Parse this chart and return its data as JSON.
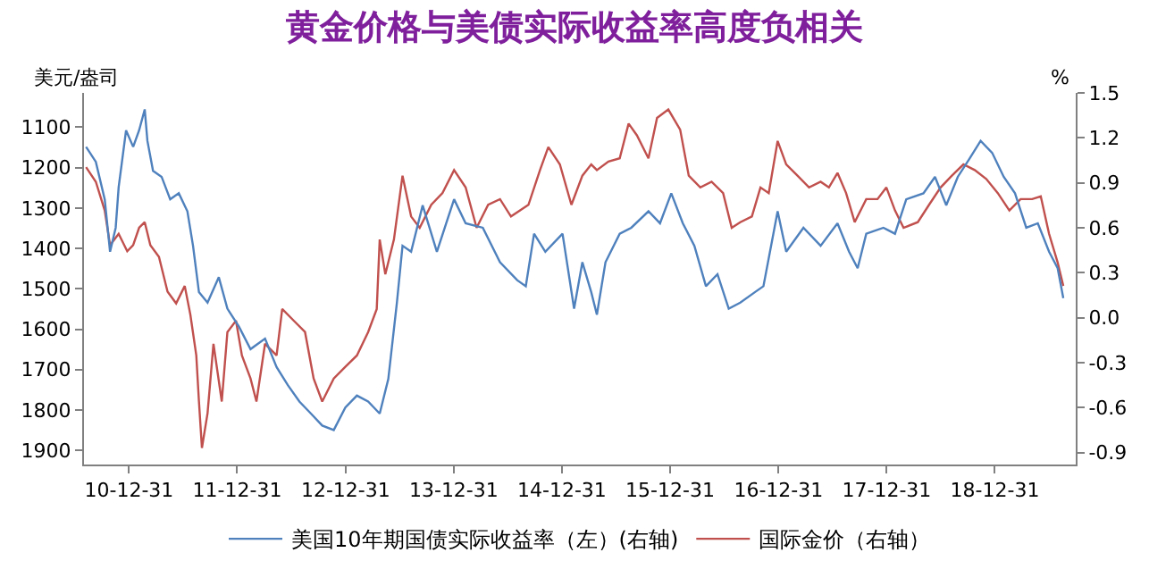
{
  "chart_data": {
    "type": "line",
    "title": "黄金价格与美债实际收益率高度负相关",
    "ylabel": "美元/盎司",
    "y2label": "%",
    "xlim": [
      "2010-08-01",
      "2019-09-30"
    ],
    "xticks": [
      {
        "value": "2010-12-31",
        "label": "10-12-31"
      },
      {
        "value": "2011-12-31",
        "label": "11-12-31"
      },
      {
        "value": "2012-12-31",
        "label": "12-12-31"
      },
      {
        "value": "2013-12-31",
        "label": "13-12-31"
      },
      {
        "value": "2014-12-31",
        "label": "14-12-31"
      },
      {
        "value": "2015-12-31",
        "label": "15-12-31"
      },
      {
        "value": "2016-12-31",
        "label": "16-12-31"
      },
      {
        "value": "2017-12-31",
        "label": "17-12-31"
      },
      {
        "value": "2018-12-31",
        "label": "18-12-31"
      }
    ],
    "ylim": [
      1935,
      1015
    ],
    "yticks": [
      1100,
      1200,
      1300,
      1400,
      1500,
      1600,
      1700,
      1800,
      1900
    ],
    "y2lim": [
      -0.98,
      1.5
    ],
    "y2ticks": [
      -0.9,
      -0.6,
      -0.3,
      {
        "value": 0,
        "label": "0.0"
      },
      0.3,
      0.6,
      0.9,
      1.2,
      1.5
    ],
    "legend": "bottom",
    "marker": "none",
    "line_style": "solid",
    "series": [
      {
        "name": "美国10年期国债实际收益率（左）(右轴)",
        "color": "#4f81bd",
        "axis": "y2",
        "x": [
          "2010-08-08",
          "2010-09-10",
          "2010-10-10",
          "2010-10-28",
          "2010-11-16",
          "2010-11-26",
          "2010-12-21",
          "2011-01-14",
          "2011-02-03",
          "2011-02-22",
          "2011-03-03",
          "2011-03-22",
          "2011-04-20",
          "2011-05-19",
          "2011-06-17",
          "2011-07-16",
          "2011-08-04",
          "2011-08-24",
          "2011-09-22",
          "2011-10-30",
          "2011-11-28",
          "2012-01-06",
          "2012-02-14",
          "2012-04-03",
          "2012-05-12",
          "2012-06-19",
          "2012-07-28",
          "2012-09-05",
          "2012-10-13",
          "2012-11-21",
          "2012-12-30",
          "2013-02-07",
          "2013-03-17",
          "2013-04-25",
          "2013-05-24",
          "2013-06-22",
          "2013-07-11",
          "2013-08-09",
          "2013-09-17",
          "2013-11-04",
          "2014-01-01",
          "2014-02-09",
          "2014-04-08",
          "2014-06-05",
          "2014-08-02",
          "2014-08-31",
          "2014-09-28",
          "2014-11-05",
          "2015-01-02",
          "2015-02-10",
          "2015-03-10",
          "2015-04-09",
          "2015-04-28",
          "2015-05-27",
          "2015-07-14",
          "2015-08-22",
          "2015-10-19",
          "2015-11-27",
          "2016-01-04",
          "2016-02-12",
          "2016-03-22",
          "2016-04-30",
          "2016-06-08",
          "2016-07-16",
          "2016-08-24",
          "2016-10-12",
          "2016-11-10",
          "2016-12-28",
          "2017-01-26",
          "2017-03-25",
          "2017-05-22",
          "2017-07-18",
          "2017-08-26",
          "2017-09-24",
          "2017-10-23",
          "2017-12-20",
          "2018-01-28",
          "2018-03-07",
          "2018-05-04",
          "2018-06-12",
          "2018-07-20",
          "2018-08-28",
          "2018-10-06",
          "2018-11-13",
          "2018-12-22",
          "2019-01-30",
          "2019-03-09",
          "2019-04-16",
          "2019-05-25",
          "2019-07-02",
          "2019-07-31",
          "2019-08-19"
        ],
        "values": [
          1.14,
          1.04,
          0.79,
          0.44,
          0.6,
          0.87,
          1.25,
          1.14,
          1.25,
          1.39,
          1.18,
          0.98,
          0.94,
          0.79,
          0.83,
          0.71,
          0.48,
          0.17,
          0.1,
          0.27,
          0.06,
          -0.06,
          -0.21,
          -0.14,
          -0.33,
          -0.45,
          -0.56,
          -0.64,
          -0.72,
          -0.75,
          -0.6,
          -0.52,
          -0.56,
          -0.64,
          -0.41,
          0.1,
          0.48,
          0.44,
          0.75,
          0.44,
          0.79,
          0.63,
          0.6,
          0.37,
          0.25,
          0.21,
          0.56,
          0.44,
          0.56,
          0.06,
          0.37,
          0.17,
          0.02,
          0.37,
          0.56,
          0.6,
          0.71,
          0.63,
          0.83,
          0.63,
          0.48,
          0.21,
          0.29,
          0.06,
          0.1,
          0.17,
          0.21,
          0.71,
          0.44,
          0.6,
          0.48,
          0.63,
          0.44,
          0.33,
          0.56,
          0.6,
          0.56,
          0.79,
          0.83,
          0.94,
          0.75,
          0.94,
          1.06,
          1.18,
          1.1,
          0.94,
          0.83,
          0.6,
          0.63,
          0.44,
          0.33,
          0.13
        ]
      },
      {
        "name": "国际金价（右轴）",
        "color": "#c0504d",
        "x": [
          "2010-08-08",
          "2010-09-10",
          "2010-10-10",
          "2010-10-28",
          "2010-11-26",
          "2010-12-25",
          "2011-01-14",
          "2011-02-03",
          "2011-02-22",
          "2011-03-13",
          "2011-04-11",
          "2011-05-10",
          "2011-06-08",
          "2011-07-07",
          "2011-07-26",
          "2011-08-15",
          "2011-08-24",
          "2011-09-03",
          "2011-09-22",
          "2011-10-12",
          "2011-11-09",
          "2011-11-28",
          "2011-12-27",
          "2012-01-16",
          "2012-02-14",
          "2012-03-05",
          "2012-04-03",
          "2012-05-12",
          "2012-05-31",
          "2012-07-09",
          "2012-08-16",
          "2012-09-14",
          "2012-10-13",
          "2012-11-21",
          "2012-12-30",
          "2013-02-07",
          "2013-03-17",
          "2013-04-15",
          "2013-04-25",
          "2013-05-14",
          "2013-06-12",
          "2013-07-11",
          "2013-08-09",
          "2013-09-07",
          "2013-10-16",
          "2013-11-23",
          "2014-01-01",
          "2014-02-09",
          "2014-03-18",
          "2014-04-26",
          "2014-06-05",
          "2014-07-12",
          "2014-09-09",
          "2014-10-18",
          "2014-11-15",
          "2014-12-24",
          "2015-02-01",
          "2015-03-10",
          "2015-04-09",
          "2015-04-28",
          "2015-06-06",
          "2015-07-14",
          "2015-08-13",
          "2015-09-10",
          "2015-10-19",
          "2015-11-17",
          "2015-12-25",
          "2016-02-03",
          "2016-03-03",
          "2016-04-11",
          "2016-05-19",
          "2016-06-27",
          "2016-07-26",
          "2016-08-24",
          "2016-10-02",
          "2016-10-31",
          "2016-11-28",
          "2016-12-28",
          "2017-01-26",
          "2017-03-05",
          "2017-04-13",
          "2017-05-22",
          "2017-06-19",
          "2017-07-18",
          "2017-08-16",
          "2017-09-14",
          "2017-10-23",
          "2017-11-30",
          "2017-12-30",
          "2018-01-28",
          "2018-02-26",
          "2018-04-15",
          "2018-05-23",
          "2018-07-01",
          "2018-08-08",
          "2018-09-16",
          "2018-10-24",
          "2018-12-02",
          "2019-01-10",
          "2019-02-18",
          "2019-03-28",
          "2019-05-06",
          "2019-06-04",
          "2019-07-02",
          "2019-07-31",
          "2019-08-19"
        ],
        "values": [
          1199,
          1235,
          1306,
          1392,
          1364,
          1407,
          1392,
          1349,
          1335,
          1392,
          1421,
          1507,
          1536,
          1493,
          1564,
          1665,
          1779,
          1894,
          1808,
          1636,
          1779,
          1607,
          1579,
          1665,
          1722,
          1779,
          1636,
          1665,
          1550,
          1579,
          1607,
          1722,
          1779,
          1722,
          1693,
          1665,
          1607,
          1550,
          1378,
          1464,
          1378,
          1220,
          1321,
          1349,
          1292,
          1263,
          1206,
          1249,
          1349,
          1292,
          1278,
          1321,
          1292,
          1206,
          1149,
          1192,
          1292,
          1220,
          1192,
          1206,
          1185,
          1177,
          1091,
          1120,
          1177,
          1077,
          1056,
          1106,
          1220,
          1249,
          1235,
          1263,
          1349,
          1335,
          1321,
          1249,
          1263,
          1134,
          1192,
          1220,
          1249,
          1235,
          1249,
          1213,
          1263,
          1335,
          1278,
          1278,
          1249,
          1306,
          1349,
          1335,
          1292,
          1249,
          1220,
          1192,
          1206,
          1228,
          1263,
          1306,
          1278,
          1278,
          1271,
          1364,
          1435,
          1493
        ]
      }
    ]
  }
}
